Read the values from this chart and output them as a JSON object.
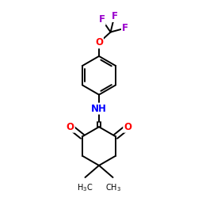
{
  "background": "#ffffff",
  "bond_color": "#000000",
  "bond_width": 1.4,
  "atom_colors": {
    "O": "#ff0000",
    "N": "#0000ff",
    "F": "#9900cc",
    "C": "#000000"
  },
  "font_size_atoms": 8.5,
  "font_size_labels": 7.0,
  "xlim": [
    0,
    10
  ],
  "ylim": [
    0,
    10
  ],
  "figsize": [
    2.5,
    2.5
  ],
  "dpi": 100
}
